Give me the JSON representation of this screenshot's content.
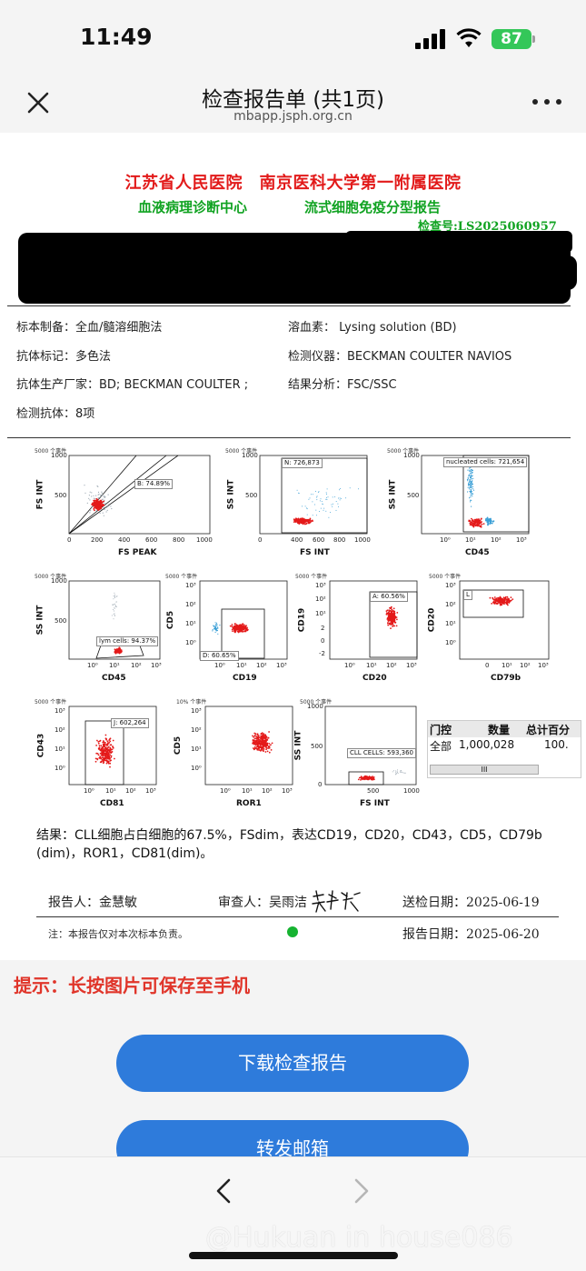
{
  "status_bar": {
    "time": "11:49",
    "battery": "87"
  },
  "header": {
    "title": "检查报告单 (共1页)",
    "url": "mbapp.jsph.org.cn"
  },
  "report": {
    "hospital_title": "江苏省人民医院　南京医科大学第一附属医院",
    "department": "血液病理诊断中心",
    "report_type": "流式细胞免疫分型报告",
    "check_number": "检查号:LS2025060957",
    "info": {
      "specimen": "标本制备：全血/髓溶细胞法",
      "hemolysin": "溶血素： Lysing solution (BD)",
      "antibody_label": "抗体标记：多色法",
      "instrument": "检测仪器：BECKMAN COULTER NAVIOS",
      "manufacturer": "抗体生产厂家：BD; BECKMAN COULTER ;",
      "analysis": "结果分析：FSC/SSC",
      "antibodies": "检测抗体：8项"
    },
    "plots": {
      "events_label": "5000 个事件",
      "events_label_10": "10% 个事件",
      "p1": {
        "x": "FS PEAK",
        "y": "FS INT",
        "gate": "B: 74.89%"
      },
      "p2": {
        "x": "FS INT",
        "y": "SS INT",
        "gate": "N: 726,873"
      },
      "p3": {
        "x": "CD45",
        "y": "SS INT",
        "gate": "nucleated cells: 721,654"
      },
      "p4": {
        "x": "CD45",
        "y": "SS INT",
        "gate": "lym cells: 94.37%"
      },
      "p5": {
        "x": "CD19",
        "y": "CD5",
        "gate": "D: 60.65%"
      },
      "p6": {
        "x": "CD20",
        "y": "CD19",
        "gate": "A: 60.56%"
      },
      "p7": {
        "x": "CD79b",
        "y": "CD20",
        "gate": "L"
      },
      "p8": {
        "x": "CD81",
        "y": "CD43",
        "gate": "J: 602,264"
      },
      "p9": {
        "x": "ROR1",
        "y": "CD5"
      },
      "p10": {
        "x": "FS INT",
        "y": "SS INT",
        "gate": "CLL CELLS: 593,360"
      },
      "ticks_lin": [
        "0",
        "200",
        "400",
        "600",
        "800",
        "1000"
      ],
      "ticks_lin_y": [
        "0",
        "500",
        "1000"
      ],
      "ticks_lin_y_short": [
        "1000",
        "500"
      ],
      "ticks_log": [
        "10⁰",
        "10¹",
        "10²",
        "10³"
      ],
      "ticks_log_y": [
        "10³",
        "10²",
        "10¹",
        "10⁰"
      ],
      "ticks_cd19_y": [
        "10³",
        "10²",
        "10¹",
        "2",
        "0",
        "-2"
      ],
      "ticks_log_cd20": [
        "0",
        "10¹",
        "10²",
        "10³"
      ],
      "ticks_log_cd19": [
        "10⁰",
        "10¹",
        "10²"
      ],
      "ticks_log_cd43": [
        "10³",
        "10²",
        "10¹",
        "10⁰"
      ],
      "ticks_cd45_short": [
        "10⁰",
        "10¹",
        "10²",
        "10³"
      ],
      "ticks_fs_short": [
        "0",
        "500",
        "1000"
      ],
      "ticks_fs_y": [
        "1000",
        "500",
        "0"
      ]
    },
    "stats": {
      "headers": [
        "门控",
        "数量",
        "总计百分"
      ],
      "row": [
        "全部",
        "1,000,028",
        "100."
      ],
      "scroll": "III"
    },
    "result": "结果：CLL细胞占白细胞的67.5%，FSdim，表达CD19，CD20，CD43，CD5，CD79b (dim)，ROR1，CD81(dim)。",
    "reporter": "报告人：金慧敏",
    "reviewer": "审查人：吴雨洁",
    "send_date": "送检日期：2025-06-19",
    "note": "注：本报告仅对本次标本负责。",
    "report_date": "报告日期：2025-06-20"
  },
  "tip": "提示：长按图片可保存至手机",
  "buttons": {
    "download": "下载检查报告",
    "forward": "转发邮箱"
  },
  "watermark": "@Hukuan in house086"
}
